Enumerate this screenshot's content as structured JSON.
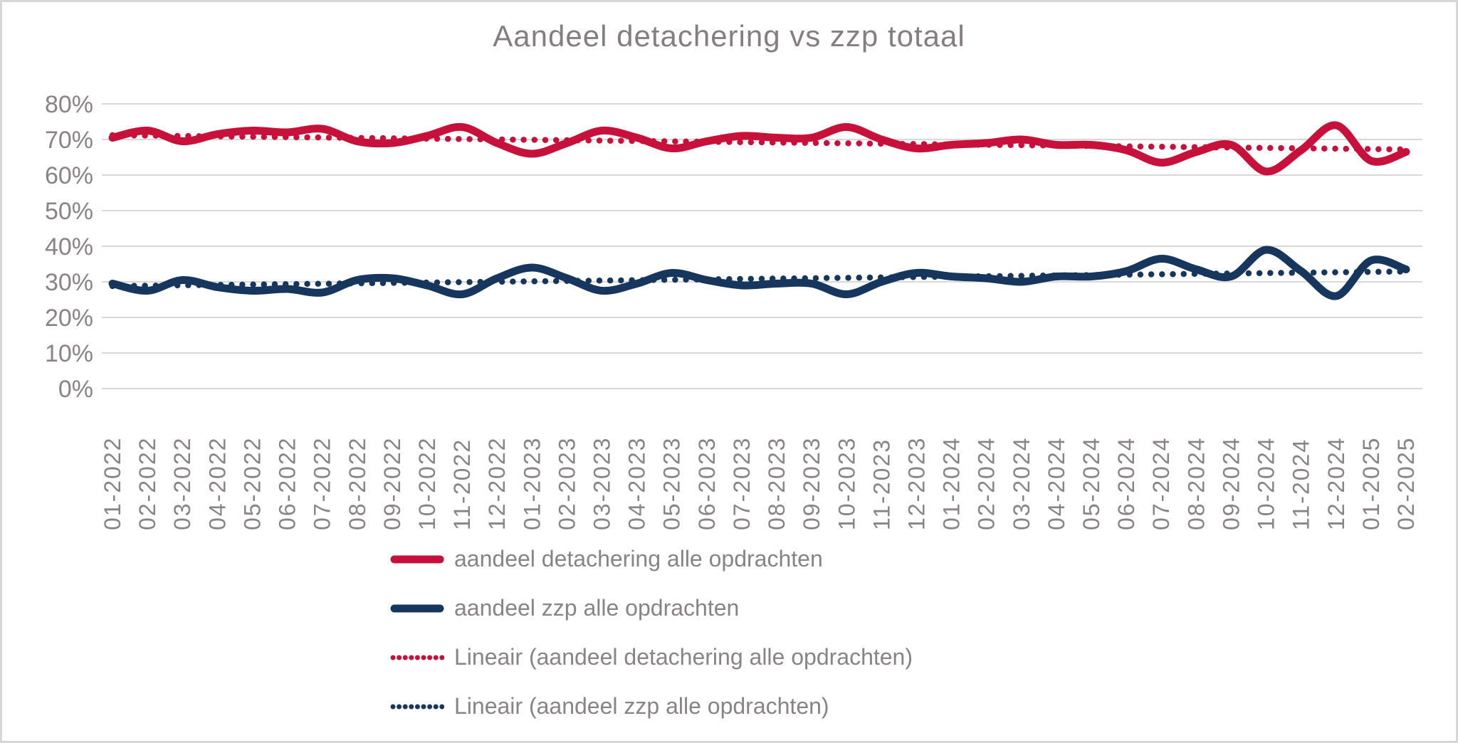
{
  "title": "Aandeel detachering vs zzp totaal",
  "colors": {
    "detachering_red": "#c8113a",
    "zzp_navy": "#17365d",
    "grid": "#dbd8d9",
    "axis_text": "#8a8385",
    "title_text": "#857d80",
    "frame_border": "#d8d5d6",
    "background": "#ffffff"
  },
  "chart_data": {
    "type": "line",
    "title": "Aandeel detachering vs zzp totaal",
    "grid": "horizontal",
    "legend_position": "bottom-left",
    "y_axis": {
      "min": 0,
      "max": 80,
      "step": 10,
      "tick_labels": [
        "0%",
        "10%",
        "20%",
        "30%",
        "40%",
        "50%",
        "60%",
        "70%",
        "80%"
      ],
      "format": "percent"
    },
    "x_labels": [
      "01-2022",
      "02-2022",
      "03-2022",
      "04-2022",
      "05-2022",
      "06-2022",
      "07-2022",
      "08-2022",
      "09-2022",
      "10-2022",
      "11-2022",
      "12-2022",
      "01-2023",
      "02-2023",
      "03-2023",
      "04-2023",
      "05-2023",
      "06-2023",
      "07-2023",
      "08-2023",
      "09-2023",
      "10-2023",
      "11-2023",
      "12-2023",
      "01-2024",
      "02-2024",
      "03-2024",
      "04-2024",
      "05-2024",
      "06-2024",
      "07-2024",
      "08-2024",
      "09-2024",
      "10-2024",
      "11-2024",
      "12-2024",
      "01-2025",
      "02-2025"
    ],
    "series": [
      {
        "name": "aandeel detachering alle opdrachten",
        "color": "#c8113a",
        "line_style": "solid",
        "smooth": true,
        "values": [
          70.5,
          72.5,
          69.5,
          71.5,
          72.5,
          72,
          73,
          69.5,
          69,
          71,
          73.5,
          69,
          66,
          69,
          72.5,
          70.5,
          67.5,
          69.5,
          71,
          70.5,
          70.5,
          73.5,
          70,
          67.5,
          68.5,
          69,
          70,
          68.5,
          68.5,
          67,
          63.5,
          66.5,
          68.5,
          61,
          67,
          74,
          64,
          66.5
        ]
      },
      {
        "name": "aandeel zzp alle opdrachten",
        "color": "#17365d",
        "line_style": "solid",
        "smooth": true,
        "values": [
          29.5,
          27.5,
          30.5,
          28.5,
          27.5,
          28,
          27,
          30.5,
          31,
          29,
          26.5,
          31,
          34,
          31,
          27.5,
          29.5,
          32.5,
          30.5,
          29,
          29.5,
          29.5,
          26.5,
          30,
          32.5,
          31.5,
          31,
          30,
          31.5,
          31.5,
          33,
          36.5,
          33.5,
          31.5,
          39,
          33,
          26,
          36,
          33.5
        ]
      },
      {
        "name": "Lineair (aandeel detachering alle opdrachten)",
        "color": "#c8113a",
        "line_style": "dotted",
        "trend": {
          "start": 71.2,
          "end": 67.2
        }
      },
      {
        "name": "Lineair (aandeel zzp alle opdrachten)",
        "color": "#17365d",
        "line_style": "dotted",
        "trend": {
          "start": 28.8,
          "end": 32.9
        }
      }
    ]
  }
}
